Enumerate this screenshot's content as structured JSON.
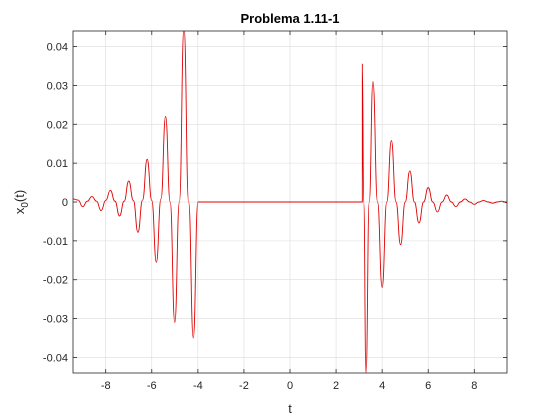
{
  "chart_data": {
    "type": "line",
    "title": "Problema 1.11-1",
    "xlabel": "t",
    "ylabel_main": "x",
    "ylabel_sub": "0",
    "ylabel_tail": "(t)",
    "xlim": [
      -9.42,
      9.42
    ],
    "ylim": [
      -0.044,
      0.044
    ],
    "x_ticks": [
      -8,
      -6,
      -4,
      -2,
      0,
      2,
      4,
      6,
      8
    ],
    "x_tick_labels": [
      "-8",
      "-6",
      "-4",
      "-2",
      "0",
      "2",
      "4",
      "6",
      "8"
    ],
    "y_ticks": [
      -0.04,
      -0.03,
      -0.02,
      -0.01,
      0,
      0.01,
      0.02,
      0.03,
      0.04
    ],
    "y_tick_labels": [
      "-0.04",
      "-0.03",
      "-0.02",
      "-0.01",
      "0",
      "0.01",
      "0.02",
      "0.03",
      "0.04"
    ],
    "grid": true,
    "series": [
      {
        "color": "#e00000",
        "x": [
          -9.42,
          -9.2,
          -9.0,
          -8.8,
          -8.6,
          -8.4,
          -8.2,
          -8.0,
          -7.8,
          -7.6,
          -7.4,
          -7.2,
          -7.0,
          -6.8,
          -6.6,
          -6.4,
          -6.2,
          -6.0,
          -5.8,
          -5.6,
          -5.4,
          -5.2,
          -5.0,
          -4.8,
          -4.6,
          -4.4,
          -4.2,
          -4.0,
          -3.8,
          -3.6,
          -3.44,
          -3.3,
          -3.2,
          -3.14,
          -3.14,
          3.14,
          3.14,
          3.2,
          3.3,
          3.44,
          3.6,
          3.8,
          4.0,
          4.2,
          4.4,
          4.6,
          4.8,
          5.0,
          5.2,
          5.4,
          5.6,
          5.8,
          6.0,
          6.2,
          6.4,
          6.6,
          6.8,
          7.0,
          7.2,
          7.4,
          7.6,
          7.8,
          8.0,
          8.2,
          8.4,
          8.6,
          8.8,
          9.0,
          9.2,
          9.42
        ],
        "y": [
          0.0008,
          0.0005,
          -0.0012,
          0.0002,
          0.0014,
          0.0002,
          -0.0022,
          0.0004,
          0.003,
          0.0002,
          -0.0036,
          0.0002,
          0.0054,
          0.0004,
          -0.0078,
          0.0005,
          0.011,
          0.0004,
          -0.0155,
          0.0008,
          0.022,
          0.0,
          -0.031,
          0.0,
          0.045,
          0.0,
          -0.035,
          0.0,
          0.0,
          0.0,
          0.0,
          0.0,
          0.0,
          0.0,
          0.0,
          0.0,
          0.0355,
          0.0,
          -0.044,
          0.0,
          0.031,
          0.0,
          -0.022,
          0.0,
          0.0158,
          0.0,
          -0.011,
          0.0,
          0.008,
          0.0,
          -0.0054,
          0.0,
          0.0037,
          0.0,
          -0.0026,
          0.0,
          0.0018,
          0.0,
          -0.0012,
          0.0,
          0.0008,
          0.0,
          -0.0006,
          0.0,
          0.0004,
          0.0,
          -0.0003,
          0.0,
          0.0002,
          -0.0002
        ]
      }
    ]
  }
}
